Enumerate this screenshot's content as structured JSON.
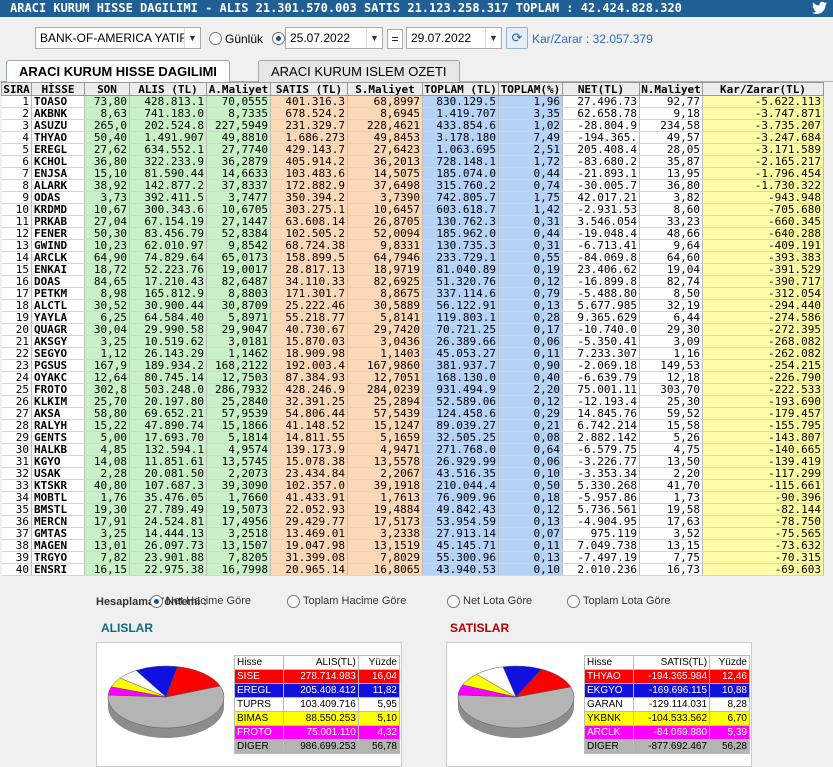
{
  "title": "ARACI KURUM HISSE DAGILIMI - ALIS 21.301.570.003  SATIS 21.123.258.317  TOPLAM : 42.424.828.320",
  "toolbar": {
    "broker": "BANK-OF-AMERICA YATIRIN",
    "gunluk_label": "Günlük",
    "date_from": "25.07.2022",
    "eq": "=",
    "date_to": "29.07.2022",
    "karzarar": "Kar/Zarar : 32.057.379"
  },
  "tabs": [
    {
      "label": "ARACI KURUM HISSE DAGILIMI"
    },
    {
      "label": "ARACI KURUM ISLEM OZETI"
    }
  ],
  "table": {
    "headers": [
      "SIRA",
      "HİSSE",
      "SON",
      "ALIS (TL)",
      "A.Maliyet",
      "SATIS (TL)",
      "S.Maliyet",
      "TOPLAM (TL)",
      "TOPLAM(%)",
      "NET(TL)",
      "N.Maliyet",
      "Kar/Zarar(TL)"
    ],
    "rows": [
      [
        "1",
        "TOASO",
        "73,80",
        "428.813.1",
        "70,0555",
        "401.316.3",
        "68,8997",
        "830.129.5",
        "1,96",
        "27.496.73",
        "92,77",
        "-5.622.113"
      ],
      [
        "2",
        "AKBNK",
        "8,63",
        "741.183.0",
        "8,7335",
        "678.524.2",
        "8,6945",
        "1.419.707",
        "3,35",
        "62.658.78",
        "9,18",
        "-3.747.871"
      ],
      [
        "3",
        "ASUZU",
        "265,0",
        "202.524.8",
        "227,5949",
        "231.329.7",
        "228,4621",
        "433.854.6",
        "1,02",
        "-28.804.9",
        "234,58",
        "-3.735.207"
      ],
      [
        "4",
        "THYAO",
        "50,40",
        "1.491.907",
        "49,8810",
        "1.686.273",
        "49,8453",
        "3.178.180",
        "7,49",
        "-194.365.",
        "49,57",
        "-3.247.684"
      ],
      [
        "5",
        "EREGL",
        "27,62",
        "634.552.1",
        "27,7740",
        "429.143.7",
        "27,6423",
        "1.063.695",
        "2,51",
        "205.408.4",
        "28,05",
        "-3.171.589"
      ],
      [
        "6",
        "KCHOL",
        "36,80",
        "322.233.9",
        "36,2879",
        "405.914.2",
        "36,2013",
        "728.148.1",
        "1,72",
        "-83.680.2",
        "35,87",
        "-2.165.217"
      ],
      [
        "7",
        "ENJSA",
        "15,10",
        "81.590.44",
        "14,6633",
        "103.483.6",
        "14,5075",
        "185.074.0",
        "0,44",
        "-21.893.1",
        "13,95",
        "-1.796.454"
      ],
      [
        "8",
        "ALARK",
        "38,92",
        "142.877.2",
        "37,8337",
        "172.882.9",
        "37,6498",
        "315.760.2",
        "0,74",
        "-30.005.7",
        "36,80",
        "-1.730.322"
      ],
      [
        "9",
        "ODAS",
        "3,73",
        "392.411.5",
        "3,7477",
        "350.394.2",
        "3,7390",
        "742.805.7",
        "1,75",
        "42.017.21",
        "3,82",
        "-943.948"
      ],
      [
        "10",
        "KRDMD",
        "10,67",
        "300.343.6",
        "10,6705",
        "303.275.1",
        "10,6457",
        "603.618.7",
        "1,42",
        "-2.931.53",
        "8,60",
        "-705.680"
      ],
      [
        "11",
        "PRKAB",
        "27,04",
        "67.154.19",
        "27,1447",
        "63.608.14",
        "26,8705",
        "130.762.3",
        "0,31",
        "3.546.054",
        "33,23",
        "-660.345"
      ],
      [
        "12",
        "FENER",
        "50,30",
        "83.456.79",
        "52,8384",
        "102.505.2",
        "52,0094",
        "185.962.0",
        "0,44",
        "-19.048.4",
        "48,66",
        "-640.288"
      ],
      [
        "13",
        "GWIND",
        "10,23",
        "62.010.97",
        "9,8542",
        "68.724.38",
        "9,8331",
        "130.735.3",
        "0,31",
        "-6.713.41",
        "9,64",
        "-409.191"
      ],
      [
        "14",
        "ARCLK",
        "64,90",
        "74.829.64",
        "65,0173",
        "158.899.5",
        "64,7946",
        "233.729.1",
        "0,55",
        "-84.069.8",
        "64,60",
        "-393.383"
      ],
      [
        "15",
        "ENKAI",
        "18,72",
        "52.223.76",
        "19,0017",
        "28.817.13",
        "18,9719",
        "81.040.89",
        "0,19",
        "23.406.62",
        "19,04",
        "-391.529"
      ],
      [
        "16",
        "DOAS",
        "84,65",
        "17.210.43",
        "82,6487",
        "34.110.33",
        "82,6925",
        "51.320.76",
        "0,12",
        "-16.899.8",
        "82,74",
        "-390.717"
      ],
      [
        "17",
        "PETKM",
        "8,98",
        "165.812.9",
        "8,8803",
        "171.301.7",
        "8,8675",
        "337.114.6",
        "0,79",
        "-5.488.80",
        "8,50",
        "-312.054"
      ],
      [
        "18",
        "ALCTL",
        "30,52",
        "30.900.44",
        "30,8709",
        "25.222.46",
        "30,5889",
        "56.122.91",
        "0,13",
        "5.677.985",
        "32,19",
        "-294.440"
      ],
      [
        "19",
        "YAYLA",
        "6,25",
        "64.584.40",
        "5,8971",
        "55.218.77",
        "5,8141",
        "119.803.1",
        "0,28",
        "9.365.629",
        "6,44",
        "-274.586"
      ],
      [
        "20",
        "QUAGR",
        "30,04",
        "29.990.58",
        "29,9047",
        "40.730.67",
        "29,7420",
        "70.721.25",
        "0,17",
        "-10.740.0",
        "29,30",
        "-272.395"
      ],
      [
        "21",
        "AKSGY",
        "3,25",
        "10.519.62",
        "3,0181",
        "15.870.03",
        "3,0436",
        "26.389.66",
        "0,06",
        "-5.350.41",
        "3,09",
        "-268.082"
      ],
      [
        "22",
        "SEGYO",
        "1,12",
        "26.143.29",
        "1,1462",
        "18.909.98",
        "1,1403",
        "45.053.27",
        "0,11",
        "7.233.307",
        "1,16",
        "-262.082"
      ],
      [
        "23",
        "PGSUS",
        "167,9",
        "189.934.2",
        "168,2122",
        "192.003.4",
        "167,9860",
        "381.937.7",
        "0,90",
        "-2.069.18",
        "149,53",
        "-254.215"
      ],
      [
        "24",
        "OYAKC",
        "12,64",
        "80.745.14",
        "12,7503",
        "87.384.93",
        "12,7051",
        "168.130.0",
        "0,40",
        "-6.639.79",
        "12,18",
        "-226.790"
      ],
      [
        "25",
        "FROTO",
        "302,8",
        "503.248.0",
        "286,7932",
        "428.246.9",
        "284,0239",
        "931.494.9",
        "2,20",
        "75.001.11",
        "303,70",
        "-222.533"
      ],
      [
        "26",
        "KLKIM",
        "25,70",
        "20.197.80",
        "25,2840",
        "32.391.25",
        "25,2894",
        "52.589.06",
        "0,12",
        "-12.193.4",
        "25,30",
        "-193.690"
      ],
      [
        "27",
        "AKSA",
        "58,80",
        "69.652.21",
        "57,9539",
        "54.806.44",
        "57,5439",
        "124.458.6",
        "0,29",
        "14.845.76",
        "59,52",
        "-179.457"
      ],
      [
        "28",
        "RALYH",
        "15,22",
        "47.890.74",
        "15,1866",
        "41.148.52",
        "15,1247",
        "89.039.27",
        "0,21",
        "6.742.214",
        "15,58",
        "-155.795"
      ],
      [
        "29",
        "GENTS",
        "5,00",
        "17.693.70",
        "5,1814",
        "14.811.55",
        "5,1659",
        "32.505.25",
        "0,08",
        "2.882.142",
        "5,26",
        "-143.807"
      ],
      [
        "30",
        "HALKB",
        "4,85",
        "132.594.1",
        "4,9574",
        "139.173.9",
        "4,9471",
        "271.768.0",
        "0,64",
        "-6.579.75",
        "4,75",
        "-140.665"
      ],
      [
        "31",
        "KGYO",
        "14,08",
        "11.851.61",
        "13,5745",
        "15.078.38",
        "13,5578",
        "26.929.99",
        "0,06",
        "-3.226.77",
        "13,50",
        "-139.419"
      ],
      [
        "32",
        "USAK",
        "2,28",
        "20.081.50",
        "2,2073",
        "23.434.84",
        "2,2067",
        "43.516.35",
        "0,10",
        "-3.353.34",
        "2,20",
        "-117.299"
      ],
      [
        "33",
        "KTSKR",
        "40,80",
        "107.687.3",
        "39,3090",
        "102.357.0",
        "39,1918",
        "210.044.4",
        "0,50",
        "5.330.268",
        "41,70",
        "-115.661"
      ],
      [
        "34",
        "MOBTL",
        "1,76",
        "35.476.05",
        "1,7660",
        "41.433.91",
        "1,7613",
        "76.909.96",
        "0,18",
        "-5.957.86",
        "1,73",
        "-90.396"
      ],
      [
        "35",
        "BMSTL",
        "19,30",
        "27.789.49",
        "19,5073",
        "22.052.93",
        "19,4884",
        "49.842.43",
        "0,12",
        "5.736.561",
        "19,58",
        "-82.144"
      ],
      [
        "36",
        "MERCN",
        "17,91",
        "24.524.81",
        "17,4956",
        "29.429.77",
        "17,5173",
        "53.954.59",
        "0,13",
        "-4.904.95",
        "17,63",
        "-78.750"
      ],
      [
        "37",
        "GMTAS",
        "3,25",
        "14.444.13",
        "3,2518",
        "13.469.01",
        "3,2338",
        "27.913.14",
        "0,07",
        "975.119",
        "3,52",
        "-75.565"
      ],
      [
        "38",
        "MAGEN",
        "13,01",
        "26.097.73",
        "13,1507",
        "19.047.98",
        "13,1519",
        "45.145.71",
        "0,11",
        "7.049.738",
        "13,15",
        "-73.632"
      ],
      [
        "39",
        "TRGYO",
        "7,82",
        "23.901.88",
        "7,8205",
        "31.399.08",
        "7,8029",
        "55.300.96",
        "0,13",
        "-7.497.19",
        "7,75",
        "-70.315"
      ],
      [
        "40",
        "ENSRI",
        "16,15",
        "22.975.38",
        "16,7998",
        "20.965.14",
        "16,8065",
        "43.940.53",
        "0,10",
        "2.010.236",
        "16,73",
        "-69.603"
      ]
    ]
  },
  "calc": {
    "label": "Hesaplama Yöntemi :",
    "options": [
      "Net Hacime Göre",
      "Toplam Hacime Göre",
      "Net Lota Göre",
      "Toplam Lota Göre"
    ],
    "selected": 0
  },
  "alislar": {
    "title": "ALISLAR",
    "headers": [
      "Hisse",
      "ALIS(TL)",
      "Yüzde"
    ],
    "rows": [
      {
        "hisse": "SISE",
        "value": "278.714.983",
        "pct": "16,04",
        "color": "#ff0000",
        "text": "#ffffff"
      },
      {
        "hisse": "EREGL",
        "value": "205.408.412",
        "pct": "11,82",
        "color": "#1010e0",
        "text": "#ffffff"
      },
      {
        "hisse": "TUPRS",
        "value": "103.409.716",
        "pct": "5,95",
        "color": "#ffffff",
        "text": "#000000"
      },
      {
        "hisse": "BIMAS",
        "value": "88.550.253",
        "pct": "5,10",
        "color": "#ffff00",
        "text": "#000000"
      },
      {
        "hisse": "FROTO",
        "value": "75.001.110",
        "pct": "4,32",
        "color": "#ff00ff",
        "text": "#ffffff"
      },
      {
        "hisse": "DIGER",
        "value": "986.699.253",
        "pct": "56,78",
        "color": "#b4b4b4",
        "text": "#000000"
      }
    ]
  },
  "satislar": {
    "title": "SATISLAR",
    "headers": [
      "Hisse",
      "SATIS(TL)",
      "Yüzde"
    ],
    "rows": [
      {
        "hisse": "THYAO",
        "value": "-194.365.984",
        "pct": "12,46",
        "color": "#ff0000",
        "text": "#ffffff"
      },
      {
        "hisse": "EKGYO",
        "value": "-169.696.115",
        "pct": "10,88",
        "color": "#1010e0",
        "text": "#ffffff"
      },
      {
        "hisse": "GARAN",
        "value": "-129.114.031",
        "pct": "8,28",
        "color": "#ffffff",
        "text": "#000000"
      },
      {
        "hisse": "YKBNK",
        "value": "-104.533.562",
        "pct": "6,70",
        "color": "#ffff00",
        "text": "#000000"
      },
      {
        "hisse": "ARCLK",
        "value": "-84.069.880",
        "pct": "5,39",
        "color": "#ff00ff",
        "text": "#ffffff"
      },
      {
        "hisse": "DIGER",
        "value": "-877.692.467",
        "pct": "56,28",
        "color": "#b4b4b4",
        "text": "#000000"
      }
    ]
  }
}
